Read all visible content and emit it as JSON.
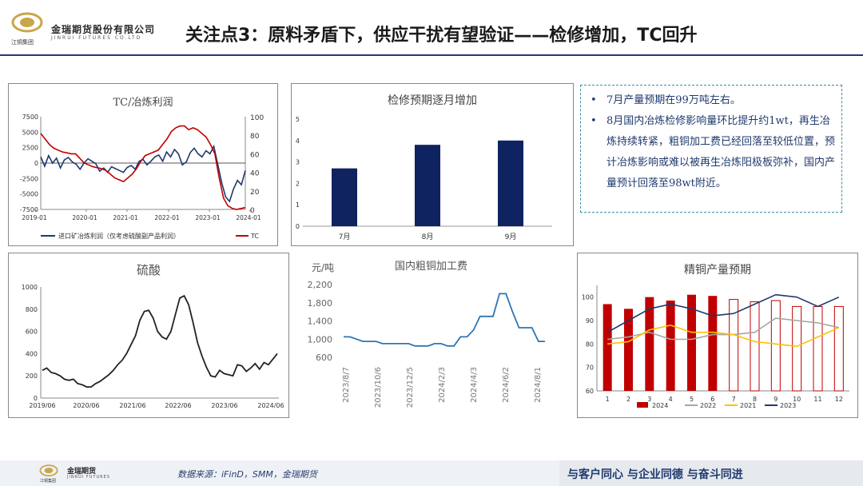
{
  "header": {
    "logo_cn": "金瑞期货股份有限公司",
    "logo_en": "JINRUI FUTURES CO.LTD",
    "logo_sub": "江铜集团",
    "title": "关注点3：原料矛盾下，供应干扰有望验证——检修增加，TC回升"
  },
  "notes": {
    "items": [
      "7月产量预期在99万吨左右。",
      "8月国内冶炼检修影响量环比提升约1wt，再生冶炼持续转紧，粗铜加工费已经回落至较低位置，预计冶炼影响或难以被再生冶炼阳极板弥补，国内产量预计回落至98wt附近。"
    ]
  },
  "footer": {
    "logo_cn": "金瑞期货",
    "logo_en": "JINRUI FUTURES",
    "logo_sub": "江铜集团",
    "source": "数据来源：iFinD，SMM，金瑞期货",
    "slogan": "与客户同心 与企业同德 与奋斗同进"
  },
  "colors": {
    "navy": "#1f3a6e",
    "red": "#c00000",
    "blue_line": "#2e75b6",
    "teal_border": "#3a8fa3"
  },
  "chart_data": [
    {
      "id": "tc-profit",
      "type": "line",
      "title": "TC/冶炼利润",
      "x_ticks": [
        "2019-01",
        "2020-01",
        "2021-01",
        "2022-01",
        "2023-01",
        "2024-01"
      ],
      "y_left_ticks": [
        "7500",
        "5000",
        "2500",
        "0",
        "-2500",
        "-5000",
        "-7500"
      ],
      "y_left_range": [
        -7500,
        7500
      ],
      "y_right_ticks": [
        "100",
        "80",
        "60",
        "40",
        "20",
        "0"
      ],
      "y_right_range": [
        0,
        100
      ],
      "series": [
        {
          "name": "进口矿冶炼利润（仅考虑硫酸副产品利润）",
          "axis": "left",
          "color": "#1f3a6e",
          "values": [
            1000,
            -500,
            1200,
            0,
            800,
            -800,
            500,
            900,
            200,
            -200,
            -1000,
            0,
            700,
            300,
            -100,
            -1300,
            -800,
            -1500,
            -600,
            -900,
            -1200,
            -1500,
            -700,
            -400,
            -1000,
            300,
            600,
            -300,
            300,
            1000,
            1300,
            300,
            1800,
            1000,
            2200,
            1500,
            -300,
            200,
            1700,
            2400,
            1500,
            1000,
            2000,
            1500,
            2700,
            -200,
            -3200,
            -5500,
            -6200,
            -4200,
            -2800,
            -3500,
            -1200
          ]
        },
        {
          "name": "TC",
          "axis": "right",
          "color": "#c00000",
          "values": [
            82,
            76,
            70,
            66,
            64,
            62,
            61,
            60,
            60,
            55,
            50,
            48,
            46,
            45,
            44,
            42,
            38,
            34,
            32,
            30,
            34,
            38,
            44,
            52,
            58,
            60,
            62,
            64,
            70,
            76,
            84,
            88,
            90,
            90,
            86,
            88,
            86,
            82,
            78,
            70,
            60,
            34,
            12,
            4,
            1,
            0,
            1,
            2
          ]
        }
      ]
    },
    {
      "id": "maintenance",
      "type": "bar",
      "title": "检修预期逐月增加",
      "categories": [
        "7月",
        "8月",
        "9月"
      ],
      "values": [
        2.7,
        3.8,
        4.0
      ],
      "y_ticks": [
        "5",
        "4",
        "3",
        "2",
        "1",
        "0"
      ],
      "ylim": [
        0,
        5
      ],
      "color": "#0f2360"
    },
    {
      "id": "sulfuric-acid",
      "type": "line",
      "title": "硫酸",
      "x_ticks": [
        "2019/06",
        "2020/06",
        "2021/06",
        "2022/06",
        "2023/06",
        "2024/06"
      ],
      "y_ticks": [
        "1000",
        "800",
        "600",
        "400",
        "200",
        "0"
      ],
      "ylim": [
        0,
        1000
      ],
      "values": [
        250,
        270,
        230,
        220,
        200,
        170,
        160,
        170,
        130,
        120,
        100,
        100,
        130,
        150,
        180,
        210,
        250,
        300,
        340,
        400,
        480,
        560,
        700,
        780,
        790,
        720,
        600,
        550,
        530,
        600,
        750,
        900,
        920,
        840,
        680,
        500,
        380,
        280,
        200,
        190,
        250,
        220,
        210,
        200,
        300,
        290,
        240,
        270,
        310,
        260,
        320,
        300,
        350,
        400
      ],
      "color": "#222222"
    },
    {
      "id": "blister-fee",
      "type": "line",
      "title": "国内粗铜加工费",
      "unit": "元/吨",
      "x_ticks": [
        "2023/8/7",
        "2023/10/6",
        "2023/12/5",
        "2024/2/3",
        "2024/4/3",
        "2024/6/2",
        "2024/8/1"
      ],
      "y_ticks": [
        "2,200",
        "1,800",
        "1,400",
        "1,000",
        "600"
      ],
      "ylim": [
        600,
        2200
      ],
      "values": [
        1050,
        1050,
        1000,
        950,
        950,
        950,
        900,
        900,
        900,
        900,
        900,
        850,
        850,
        850,
        900,
        900,
        850,
        850,
        1050,
        1050,
        1200,
        1500,
        1500,
        1500,
        2000,
        2000,
        1600,
        1250,
        1250,
        1250,
        950,
        950
      ],
      "color": "#2e75b6"
    },
    {
      "id": "refined-output",
      "type": "bar-line",
      "title": "精铜产量预期",
      "categories": [
        "1",
        "2",
        "3",
        "4",
        "5",
        "6",
        "7",
        "8",
        "9",
        "10",
        "11",
        "12"
      ],
      "y_ticks": [
        "100",
        "90",
        "80",
        "70",
        "60"
      ],
      "ylim": [
        60,
        105
      ],
      "series": [
        {
          "name": "2024",
          "kind": "bar",
          "color": "#c00000",
          "solid_count": 6,
          "values": [
            97,
            95,
            100,
            98.5,
            101,
            100.5,
            99,
            98,
            98.5,
            96,
            96,
            96
          ]
        },
        {
          "name": "2022",
          "kind": "line",
          "color": "#a6a6a6",
          "values": [
            82,
            83,
            85,
            82,
            82,
            84,
            84,
            85,
            91,
            90,
            89,
            87
          ]
        },
        {
          "name": "2021",
          "kind": "line",
          "color": "#ffc000",
          "values": [
            80,
            81,
            86,
            88,
            85,
            85,
            84,
            81,
            80,
            79,
            83,
            87
          ]
        },
        {
          "name": "2023",
          "kind": "line",
          "color": "#1f3a6e",
          "values": [
            85,
            90,
            95,
            97,
            95,
            92,
            93,
            97,
            101,
            100,
            96,
            100
          ]
        }
      ]
    }
  ]
}
